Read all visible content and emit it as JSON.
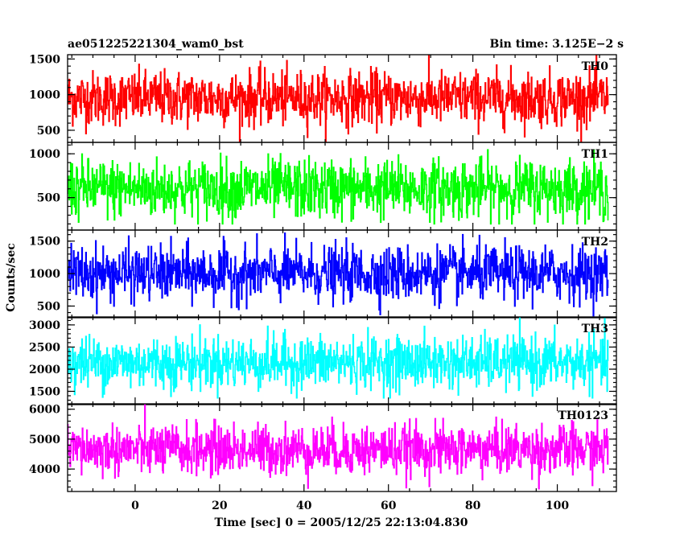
{
  "chart_data": {
    "type": "line",
    "title_left": "ae051225221304_wam0_bst",
    "title_right": "Bin time: 3.125E−2 s",
    "xlabel": "Time [sec] 0 = 2005/12/25 22:13:04.830",
    "ylabel": "Counts/sec",
    "xlim": [
      -16,
      114
    ],
    "data_xrange": [
      -16,
      112
    ],
    "bin_time": 0.03125,
    "x_ticks": [
      0,
      20,
      40,
      60,
      80,
      100
    ],
    "x_ticks_minor_step": 5,
    "grid": false,
    "panels": [
      {
        "name": "TH0",
        "color": "#ff0000",
        "ylim": [
          330,
          1560
        ],
        "y_ticks": [
          500,
          1000,
          1500
        ],
        "mean": 950,
        "sigma": 190,
        "min_value": 330,
        "max_value": 1560
      },
      {
        "name": "TH1",
        "color": "#00ff00",
        "ylim": [
          130,
          1130
        ],
        "y_ticks": [
          500,
          1000
        ],
        "mean": 600,
        "sigma": 170,
        "min_value": 200,
        "max_value": 1130
      },
      {
        "name": "TH2",
        "color": "#0000ff",
        "ylim": [
          320,
          1670
        ],
        "y_ticks": [
          500,
          1000,
          1500
        ],
        "mean": 1000,
        "sigma": 210,
        "min_value": 350,
        "max_value": 1670
      },
      {
        "name": "TH3",
        "color": "#00ffff",
        "ylim": [
          1200,
          3180
        ],
        "y_ticks": [
          1500,
          2000,
          2500,
          3000
        ],
        "mean": 2150,
        "sigma": 300,
        "min_value": 1350,
        "max_value": 3180
      },
      {
        "name": "TH0123",
        "color": "#ff00ff",
        "ylim": [
          3250,
          6180
        ],
        "y_ticks": [
          4000,
          5000,
          6000
        ],
        "mean": 4650,
        "sigma": 420,
        "min_value": 3250,
        "max_value": 6180
      }
    ]
  }
}
